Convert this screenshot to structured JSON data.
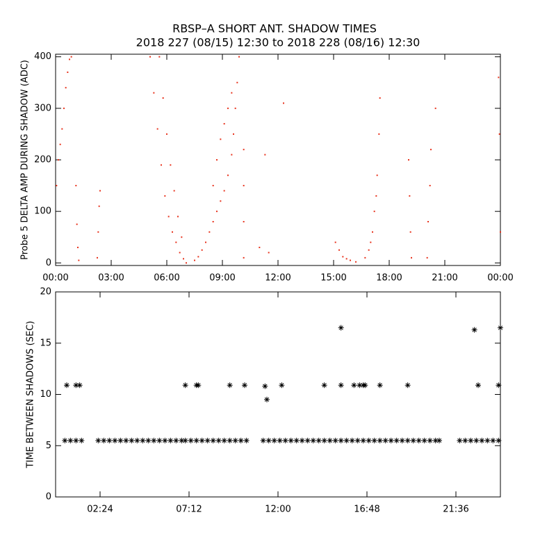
{
  "title_lines": [
    "RBSP–A SHORT ANT. SHADOW TIMES",
    "2018 227 (08/15) 12:30 to 2018 228 (08/16) 12:30"
  ],
  "chart_data": [
    {
      "type": "scatter",
      "ylabel": "Probe 5 DELTA AMP DURING SHADOW (ADC)",
      "color": "#e8321c",
      "xlim": [
        0,
        24
      ],
      "ylim": [
        -5,
        405
      ],
      "xticks": [
        {
          "value": 0,
          "label": "00:00"
        },
        {
          "value": 3,
          "label": "03:00"
        },
        {
          "value": 6,
          "label": "06:00"
        },
        {
          "value": 9,
          "label": "09:00"
        },
        {
          "value": 12,
          "label": "12:00"
        },
        {
          "value": 15,
          "label": "15:00"
        },
        {
          "value": 18,
          "label": "18:00"
        },
        {
          "value": 21,
          "label": "21:00"
        },
        {
          "value": 24,
          "label": "00:00"
        }
      ],
      "yticks": [
        0,
        100,
        200,
        300,
        400
      ],
      "x": [
        0.05,
        0.15,
        0.25,
        0.35,
        0.45,
        0.55,
        0.65,
        0.75,
        0.85,
        1.1,
        1.15,
        1.2,
        1.25,
        2.25,
        2.3,
        2.35,
        2.4,
        5.1,
        5.3,
        5.5,
        5.7,
        5.9,
        6.1,
        6.3,
        6.5,
        6.7,
        6.9,
        7.05,
        5.6,
        5.8,
        6.0,
        6.2,
        6.4,
        6.6,
        6.8,
        7.5,
        7.7,
        7.9,
        8.1,
        8.3,
        8.5,
        8.7,
        8.9,
        9.1,
        9.3,
        9.5,
        9.6,
        9.7,
        9.8,
        9.9,
        8.5,
        8.7,
        8.9,
        9.1,
        9.3,
        9.5,
        10.15,
        10.15,
        10.15,
        10.15,
        11.0,
        11.3,
        11.5,
        12.3,
        15.1,
        15.3,
        15.5,
        15.7,
        15.9,
        16.2,
        16.7,
        16.9,
        17.0,
        17.1,
        17.2,
        17.3,
        17.35,
        17.45,
        17.5,
        19.05,
        19.1,
        19.15,
        19.2,
        20.05,
        20.1,
        20.2,
        20.25,
        20.5,
        23.9,
        23.95,
        24
      ],
      "values": [
        150,
        200,
        230,
        260,
        300,
        340,
        370,
        395,
        400,
        150,
        75,
        30,
        5,
        10,
        60,
        110,
        140,
        400,
        330,
        260,
        190,
        130,
        90,
        60,
        40,
        20,
        8,
        0,
        400,
        320,
        250,
        190,
        140,
        90,
        50,
        5,
        12,
        25,
        40,
        60,
        80,
        100,
        120,
        140,
        170,
        210,
        250,
        300,
        350,
        400,
        150,
        200,
        240,
        270,
        300,
        330,
        220,
        150,
        80,
        10,
        30,
        210,
        20,
        310,
        40,
        25,
        12,
        8,
        5,
        2,
        10,
        25,
        40,
        60,
        100,
        130,
        170,
        250,
        320,
        200,
        130,
        60,
        10,
        10,
        80,
        150,
        220,
        300,
        360,
        250,
        60
      ]
    },
    {
      "type": "scatter",
      "ylabel": "TIME BETWEEN SHADOWS (SEC)",
      "color": "#000000",
      "xlim": [
        0,
        24
      ],
      "ylim": [
        0,
        20
      ],
      "xticks": [
        {
          "value": 2.4,
          "label": "02:24"
        },
        {
          "value": 7.2,
          "label": "07:12"
        },
        {
          "value": 12,
          "label": "12:00"
        },
        {
          "value": 16.8,
          "label": "16:48"
        },
        {
          "value": 21.6,
          "label": "21:36"
        }
      ],
      "yticks": [
        0,
        5,
        10,
        15,
        20
      ],
      "x": [
        0.6,
        1.1,
        1.3,
        7.0,
        7.6,
        7.7,
        9.4,
        10.2,
        11.3,
        12.2,
        14.5,
        15.4,
        16.1,
        16.4,
        16.6,
        16.7,
        17.5,
        19.0,
        22.8,
        23.9,
        11.4,
        15.4,
        22.6,
        24,
        0.5,
        0.8,
        1.1,
        1.4,
        2.3,
        2.6,
        2.9,
        3.2,
        3.5,
        3.8,
        4.1,
        4.4,
        4.7,
        5.0,
        5.3,
        5.6,
        5.9,
        6.2,
        6.5,
        6.8,
        7.0,
        7.3,
        7.6,
        7.9,
        8.2,
        8.5,
        8.8,
        9.1,
        9.4,
        9.7,
        10.0,
        10.3,
        11.2,
        11.5,
        11.8,
        12.1,
        12.4,
        12.7,
        13.0,
        13.3,
        13.6,
        13.9,
        14.2,
        14.5,
        14.8,
        15.1,
        15.4,
        15.7,
        16.0,
        16.3,
        16.6,
        16.9,
        17.2,
        17.5,
        17.8,
        18.1,
        18.4,
        18.7,
        19.0,
        19.3,
        19.6,
        19.9,
        20.2,
        20.5,
        20.7,
        21.8,
        22.1,
        22.4,
        22.7,
        23.0,
        23.3,
        23.6,
        23.9
      ],
      "values": [
        10.9,
        10.9,
        10.9,
        10.9,
        10.9,
        10.9,
        10.9,
        10.9,
        10.8,
        10.9,
        10.9,
        10.9,
        10.9,
        10.9,
        10.9,
        10.9,
        10.9,
        10.9,
        10.9,
        10.9,
        9.5,
        16.5,
        16.3,
        16.5,
        5.5,
        5.5,
        5.5,
        5.5,
        5.5,
        5.5,
        5.5,
        5.5,
        5.5,
        5.5,
        5.5,
        5.5,
        5.5,
        5.5,
        5.5,
        5.5,
        5.5,
        5.5,
        5.5,
        5.5,
        5.5,
        5.5,
        5.5,
        5.5,
        5.5,
        5.5,
        5.5,
        5.5,
        5.5,
        5.5,
        5.5,
        5.5,
        5.5,
        5.5,
        5.5,
        5.5,
        5.5,
        5.5,
        5.5,
        5.5,
        5.5,
        5.5,
        5.5,
        5.5,
        5.5,
        5.5,
        5.5,
        5.5,
        5.5,
        5.5,
        5.5,
        5.5,
        5.5,
        5.5,
        5.5,
        5.5,
        5.5,
        5.5,
        5.5,
        5.5,
        5.5,
        5.5,
        5.5,
        5.5,
        5.5,
        5.5,
        5.5,
        5.5,
        5.5,
        5.5,
        5.5,
        5.5,
        5.5
      ]
    }
  ]
}
